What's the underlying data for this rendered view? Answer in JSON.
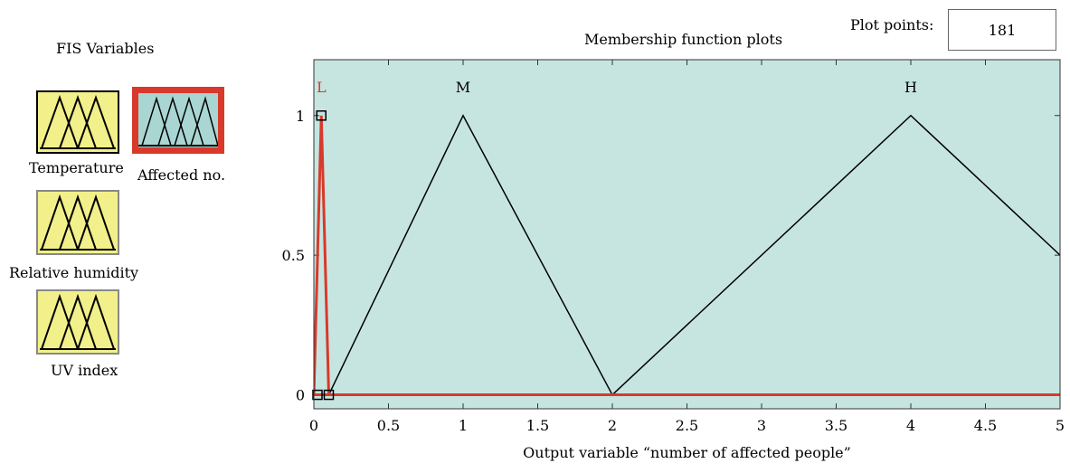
{
  "fis": {
    "title": "FIS Variables",
    "variables": [
      {
        "label": "Temperature",
        "selected": false
      },
      {
        "label": "Affected no.",
        "selected": true
      },
      {
        "label": "Relative humidity",
        "selected": false
      },
      {
        "label": "UV index",
        "selected": false
      }
    ]
  },
  "plot": {
    "title": "Membership function plots",
    "plot_points_label": "Plot points:",
    "plot_points_value": "181"
  },
  "chart_data": {
    "type": "line",
    "xlabel": "Output variable “number of affected people”",
    "ylabel": "",
    "xlim": [
      0,
      5
    ],
    "ylim": [
      -0.05,
      1.2
    ],
    "x_ticks": [
      "0",
      "0.5",
      "1",
      "1.5",
      "2",
      "2.5",
      "3",
      "3.5",
      "4",
      "4.5",
      "5"
    ],
    "y_ticks": [
      "0",
      "0.5",
      "1"
    ],
    "background": "#c6e5e1",
    "series": [
      {
        "name": "L",
        "color": "#d8392b",
        "selected": true,
        "x": [
          0,
          0.05,
          0.1
        ],
        "y": [
          0,
          1,
          0
        ]
      },
      {
        "name": "M",
        "color": "#000000",
        "selected": false,
        "x": [
          0.1,
          1,
          2
        ],
        "y": [
          0,
          1,
          0
        ]
      },
      {
        "name": "H",
        "color": "#000000",
        "selected": false,
        "x": [
          2,
          4,
          6
        ],
        "y": [
          0,
          1,
          0
        ]
      }
    ]
  }
}
